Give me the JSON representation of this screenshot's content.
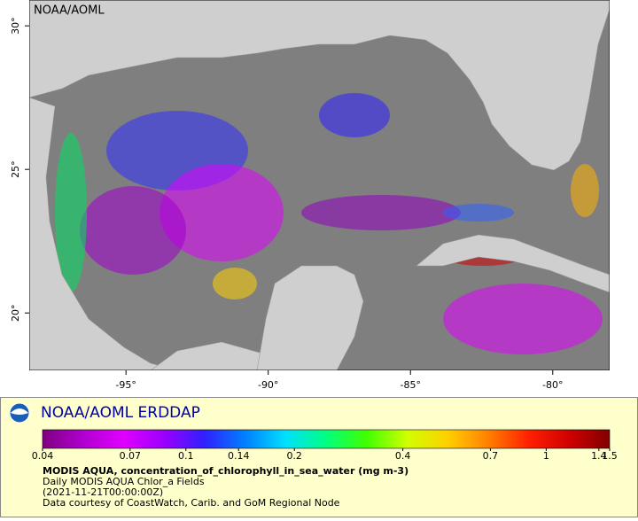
{
  "map": {
    "credit": "NOAA/AOML",
    "xlim": [
      -98.4,
      -78
    ],
    "ylim": [
      18,
      30.9
    ],
    "xticks": [
      {
        "value": -95,
        "label": "-95°"
      },
      {
        "value": -90,
        "label": "-90°"
      },
      {
        "value": -85,
        "label": "-85°"
      },
      {
        "value": -80,
        "label": "-80°"
      }
    ],
    "yticks": [
      {
        "value": 20,
        "label": "20°"
      },
      {
        "value": 25,
        "label": "25°"
      },
      {
        "value": 30,
        "label": "30°"
      }
    ]
  },
  "legend": {
    "title": "NOAA/AOML ERDDAP",
    "colorbar": {
      "scale": "log",
      "lim": [
        0.04,
        1.5
      ],
      "ticks": [
        0.04,
        0.07,
        0.1,
        0.14,
        0.2,
        0.4,
        0.7,
        1,
        1.4,
        1.5
      ],
      "colors": [
        "#7f007f",
        "#b000d0",
        "#e000ff",
        "#9a00ff",
        "#3020ff",
        "#0080ff",
        "#00e0ff",
        "#00ff80",
        "#40ff00",
        "#d0ff00",
        "#ffd000",
        "#ff8000",
        "#ff2000",
        "#d00000",
        "#800000"
      ]
    },
    "variable": "MODIS AQUA, concentration_of_chlorophyll_in_sea_water (mg m-3)",
    "lines": [
      "Daily MODIS AQUA Chlor_a Fields",
      "(2021-11-21T00:00:00Z)",
      "Data courtesy of CoastWatch, Carib. and GoM Regional Node"
    ]
  }
}
